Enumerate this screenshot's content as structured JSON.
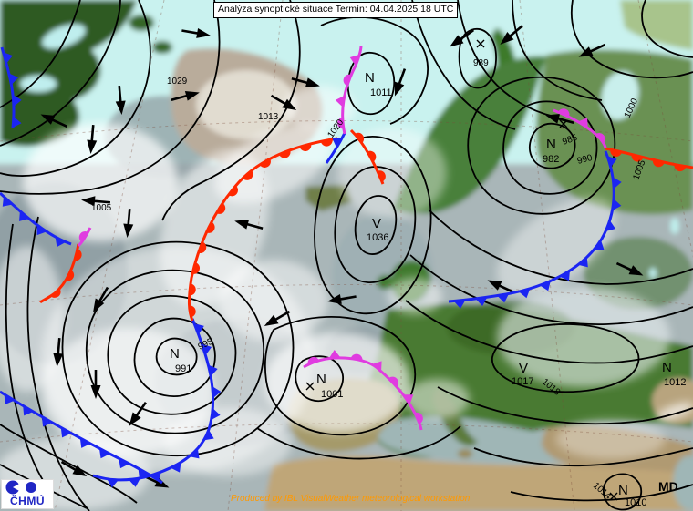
{
  "title": "Analýza synoptické situace Termín: 04.04.2025 18 UTC",
  "credit": "Produced by IBL VisualWeather meteorological workstation",
  "analyst_initials": "MD",
  "logo_text": "ČHMÚ",
  "colors": {
    "cold_front": "#1b25f2",
    "warm_front": "#ff2800",
    "occluded_front": "#e03ce0",
    "isobar": "#000000",
    "credit_text": "#ff9900",
    "logo_blue": "#2026c4",
    "arctic_sea": "#c9f2ef",
    "atlantic_cloud": "#a9b6b8",
    "land_green": "#47772f"
  },
  "pressure_centers": [
    {
      "letter": "N",
      "value": "1011"
    },
    {
      "letter": "V",
      "value": "1036"
    },
    {
      "letter": "N",
      "value": "991"
    },
    {
      "letter": "N",
      "value": "1001"
    },
    {
      "letter": "N",
      "value": "982"
    },
    {
      "letter": "V",
      "value": "1017"
    },
    {
      "letter": "N",
      "value": "1010"
    },
    {
      "letter": "N",
      "value": "1012"
    }
  ],
  "isobar_labels": [
    {
      "text": "1029"
    },
    {
      "text": "1013"
    },
    {
      "text": "1020"
    },
    {
      "text": "1005"
    },
    {
      "text": "995"
    },
    {
      "text": "989"
    },
    {
      "text": "985"
    },
    {
      "text": "990"
    },
    {
      "text": "1000"
    },
    {
      "text": "1005"
    },
    {
      "text": "1018"
    },
    {
      "text": "1014"
    }
  ]
}
